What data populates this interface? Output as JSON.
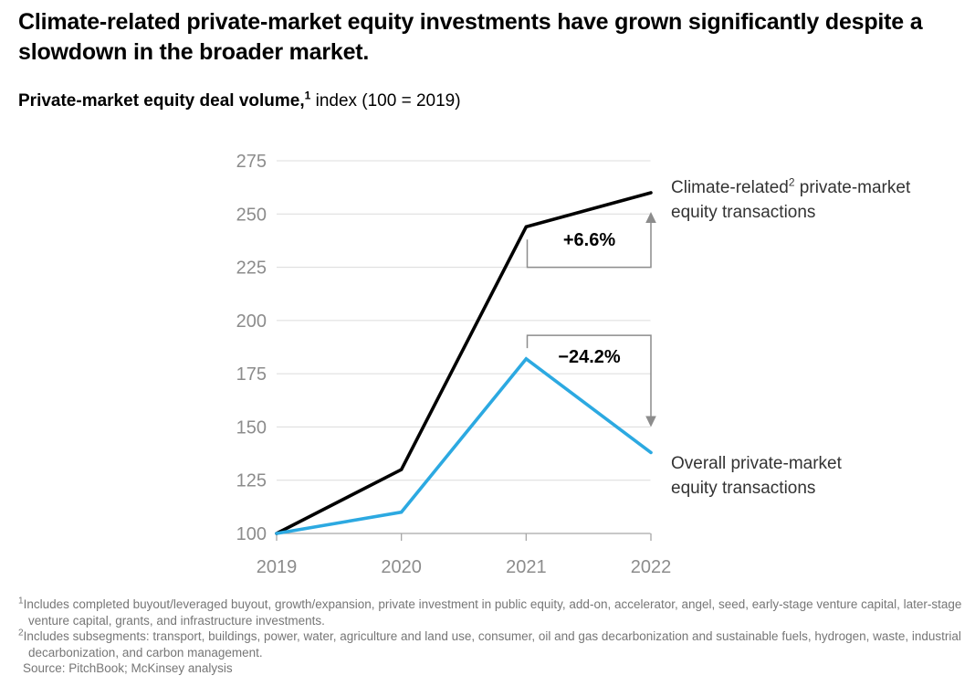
{
  "title": "Climate-related private-market equity investments have grown significantly despite a slowdown in the broader market.",
  "subtitle": {
    "bold": "Private-market equity deal volume,",
    "marker": "1",
    "rest": " index (100 = 2019)"
  },
  "chart_data": {
    "type": "line",
    "title": "Private-market equity deal volume, index (100 = 2019)",
    "x": [
      "2019",
      "2020",
      "2021",
      "2022"
    ],
    "yticks": [
      100,
      125,
      150,
      175,
      200,
      225,
      250,
      275
    ],
    "ylim": [
      100,
      275
    ],
    "grid": "horizontal",
    "legend_position": "right-labels",
    "series": [
      {
        "name": "Climate-related private-market equity transactions",
        "color": "#000000",
        "values": [
          100,
          130,
          244,
          260
        ]
      },
      {
        "name": "Overall private-market equity transactions",
        "color": "#2CA9E1",
        "values": [
          100,
          110,
          182,
          138
        ]
      }
    ],
    "annotations": [
      {
        "label": "+6.6%",
        "series": "climate-related",
        "span": [
          "2021",
          "2022"
        ]
      },
      {
        "label": "−24.2%",
        "series": "overall",
        "span": [
          "2021",
          "2022"
        ]
      }
    ]
  },
  "series_labels": {
    "climate": {
      "pre": "Climate-related",
      "marker": "2",
      "post": " private-market",
      "line2": "equity transactions"
    },
    "overall": {
      "line1": "Overall private-market",
      "line2": "equity transactions"
    }
  },
  "footnotes": [
    {
      "marker": "1",
      "text": "Includes completed buyout/leveraged buyout, growth/expansion, private investment in public equity, add-on, accelerator, angel, seed, early-stage venture capital, later-stage venture capital, grants, and infrastructure investments."
    },
    {
      "marker": "2",
      "text": "Includes subsegments: transport, buildings, power, water, agriculture and land use, consumer, oil and gas decarbonization and sustainable fuels, hydrogen, waste, industrial decarbonization, and carbon management."
    }
  ],
  "source": "Source: PitchBook; McKinsey analysis",
  "colors": {
    "accent_blue": "#2CA9E1",
    "line_black": "#000000",
    "gridline": "#DCDCDC",
    "axis": "#A6A6A6",
    "axis_label": "#8C8C8C",
    "bracket": "#8C8C8C",
    "footnote": "#767676"
  }
}
